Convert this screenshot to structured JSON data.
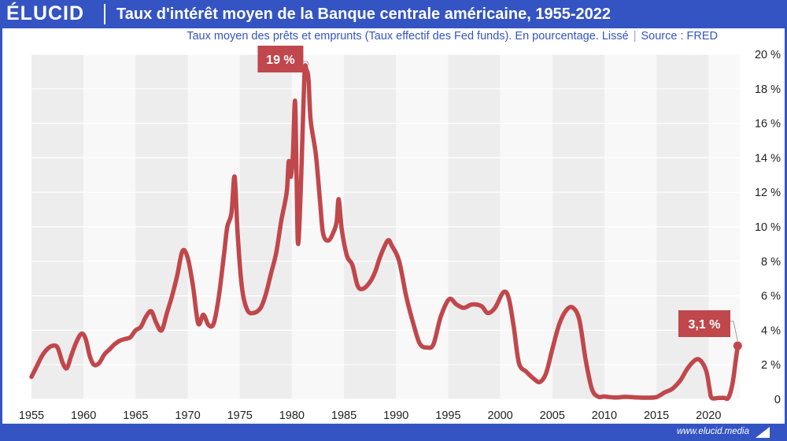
{
  "header": {
    "logo": "ÉLUCID",
    "title": "Taux d'intérêt moyen de la Banque centrale américaine, 1955-2022"
  },
  "subtitle": {
    "description": "Taux moyen des prêts et emprunts (Taux effectif des Fed funds). En pourcentage. Lissé",
    "source": "Source : FRED"
  },
  "footer": {
    "url": "www.elucid.media"
  },
  "colors": {
    "brand": "#3454c4",
    "line": "#c0474b",
    "band": "#ededed"
  },
  "chart_data": {
    "type": "line",
    "title": "Taux d'intérêt moyen de la Banque centrale américaine, 1955-2022",
    "xlabel": "",
    "ylabel": "",
    "xlim": [
      1955,
      2023
    ],
    "ylim": [
      0,
      20
    ],
    "grid": true,
    "x_ticks": [
      1955,
      1960,
      1965,
      1970,
      1975,
      1980,
      1985,
      1990,
      1995,
      2000,
      2005,
      2010,
      2015,
      2020
    ],
    "x_tick_labels": [
      "1955",
      "1960",
      "1965",
      "1970",
      "1975",
      "1980",
      "1985",
      "1990",
      "1995",
      "2000",
      "2005",
      "2010",
      "2015",
      "2020"
    ],
    "y_ticks": [
      0,
      2,
      4,
      6,
      8,
      10,
      12,
      14,
      16,
      18,
      20
    ],
    "y_tick_labels": [
      "0",
      "2 %",
      "4 %",
      "6 %",
      "8 %",
      "10 %",
      "12 %",
      "14 %",
      "16 %",
      "18 %",
      "20 %"
    ],
    "series": [
      {
        "name": "Taux effectif des Fed funds",
        "points": [
          [
            1955.0,
            1.3
          ],
          [
            1955.5,
            1.9
          ],
          [
            1956.0,
            2.5
          ],
          [
            1956.5,
            2.9
          ],
          [
            1957.0,
            3.1
          ],
          [
            1957.5,
            3.0
          ],
          [
            1958.0,
            2.1
          ],
          [
            1958.4,
            1.8
          ],
          [
            1958.8,
            2.5
          ],
          [
            1959.3,
            3.3
          ],
          [
            1959.8,
            3.8
          ],
          [
            1960.2,
            3.5
          ],
          [
            1960.6,
            2.5
          ],
          [
            1961.0,
            2.0
          ],
          [
            1961.5,
            2.1
          ],
          [
            1962.0,
            2.6
          ],
          [
            1962.5,
            2.9
          ],
          [
            1963.0,
            3.2
          ],
          [
            1963.5,
            3.4
          ],
          [
            1964.0,
            3.5
          ],
          [
            1964.5,
            3.6
          ],
          [
            1965.0,
            4.0
          ],
          [
            1965.5,
            4.2
          ],
          [
            1966.0,
            4.8
          ],
          [
            1966.5,
            5.1
          ],
          [
            1967.0,
            4.4
          ],
          [
            1967.5,
            4.0
          ],
          [
            1968.0,
            5.0
          ],
          [
            1968.5,
            6.0
          ],
          [
            1969.0,
            7.2
          ],
          [
            1969.5,
            8.6
          ],
          [
            1970.0,
            8.2
          ],
          [
            1970.5,
            6.6
          ],
          [
            1971.0,
            4.4
          ],
          [
            1971.5,
            4.9
          ],
          [
            1972.0,
            4.3
          ],
          [
            1972.5,
            4.4
          ],
          [
            1973.0,
            6.0
          ],
          [
            1973.5,
            8.5
          ],
          [
            1973.8,
            10.0
          ],
          [
            1974.2,
            10.8
          ],
          [
            1974.5,
            12.9
          ],
          [
            1974.8,
            9.5
          ],
          [
            1975.2,
            6.5
          ],
          [
            1975.7,
            5.2
          ],
          [
            1976.3,
            5.0
          ],
          [
            1977.0,
            5.3
          ],
          [
            1977.5,
            6.1
          ],
          [
            1978.0,
            7.3
          ],
          [
            1978.5,
            8.5
          ],
          [
            1979.0,
            10.4
          ],
          [
            1979.5,
            12.0
          ],
          [
            1979.7,
            13.8
          ],
          [
            1979.9,
            12.9
          ],
          [
            1980.1,
            14.2
          ],
          [
            1980.3,
            17.3
          ],
          [
            1980.45,
            13.0
          ],
          [
            1980.6,
            9.0
          ],
          [
            1980.9,
            13.0
          ],
          [
            1981.2,
            18.8
          ],
          [
            1981.4,
            19.1
          ],
          [
            1981.6,
            18.5
          ],
          [
            1981.8,
            16.2
          ],
          [
            1982.3,
            14.2
          ],
          [
            1982.7,
            11.5
          ],
          [
            1983.0,
            9.6
          ],
          [
            1983.5,
            9.2
          ],
          [
            1984.0,
            9.7
          ],
          [
            1984.3,
            10.3
          ],
          [
            1984.5,
            11.6
          ],
          [
            1984.8,
            9.8
          ],
          [
            1985.3,
            8.3
          ],
          [
            1985.8,
            7.8
          ],
          [
            1986.3,
            6.6
          ],
          [
            1986.8,
            6.4
          ],
          [
            1987.5,
            6.8
          ],
          [
            1988.0,
            7.4
          ],
          [
            1988.5,
            8.3
          ],
          [
            1989.2,
            9.2
          ],
          [
            1989.6,
            8.9
          ],
          [
            1990.3,
            8.0
          ],
          [
            1991.0,
            5.9
          ],
          [
            1991.7,
            4.3
          ],
          [
            1992.3,
            3.2
          ],
          [
            1993.0,
            3.0
          ],
          [
            1993.6,
            3.2
          ],
          [
            1994.3,
            4.8
          ],
          [
            1995.1,
            5.8
          ],
          [
            1995.8,
            5.5
          ],
          [
            1996.5,
            5.3
          ],
          [
            1997.3,
            5.5
          ],
          [
            1998.2,
            5.4
          ],
          [
            1998.8,
            5.0
          ],
          [
            1999.5,
            5.3
          ],
          [
            2000.3,
            6.2
          ],
          [
            2000.8,
            5.9
          ],
          [
            2001.3,
            4.2
          ],
          [
            2001.8,
            2.1
          ],
          [
            2002.5,
            1.6
          ],
          [
            2003.2,
            1.2
          ],
          [
            2003.8,
            1.0
          ],
          [
            2004.4,
            1.5
          ],
          [
            2005.0,
            2.9
          ],
          [
            2005.7,
            4.4
          ],
          [
            2006.4,
            5.2
          ],
          [
            2007.0,
            5.3
          ],
          [
            2007.6,
            4.6
          ],
          [
            2008.2,
            2.3
          ],
          [
            2008.8,
            0.6
          ],
          [
            2009.4,
            0.15
          ],
          [
            2010.0,
            0.16
          ],
          [
            2011.0,
            0.1
          ],
          [
            2012.0,
            0.14
          ],
          [
            2013.0,
            0.11
          ],
          [
            2014.0,
            0.09
          ],
          [
            2015.0,
            0.13
          ],
          [
            2015.8,
            0.4
          ],
          [
            2016.5,
            0.6
          ],
          [
            2017.3,
            1.1
          ],
          [
            2018.0,
            1.8
          ],
          [
            2018.8,
            2.3
          ],
          [
            2019.3,
            2.2
          ],
          [
            2019.8,
            1.6
          ],
          [
            2020.1,
            0.6
          ],
          [
            2020.3,
            0.08
          ],
          [
            2021.0,
            0.08
          ],
          [
            2021.5,
            0.08
          ],
          [
            2021.9,
            0.08
          ],
          [
            2022.3,
            0.9
          ],
          [
            2022.6,
            2.2
          ],
          [
            2022.8,
            3.1
          ]
        ]
      }
    ],
    "annotations": [
      {
        "label": "19 %",
        "x": 1981.4,
        "y": 19.1
      },
      {
        "label": "3,1 %",
        "x": 2022.8,
        "y": 3.1
      }
    ]
  }
}
